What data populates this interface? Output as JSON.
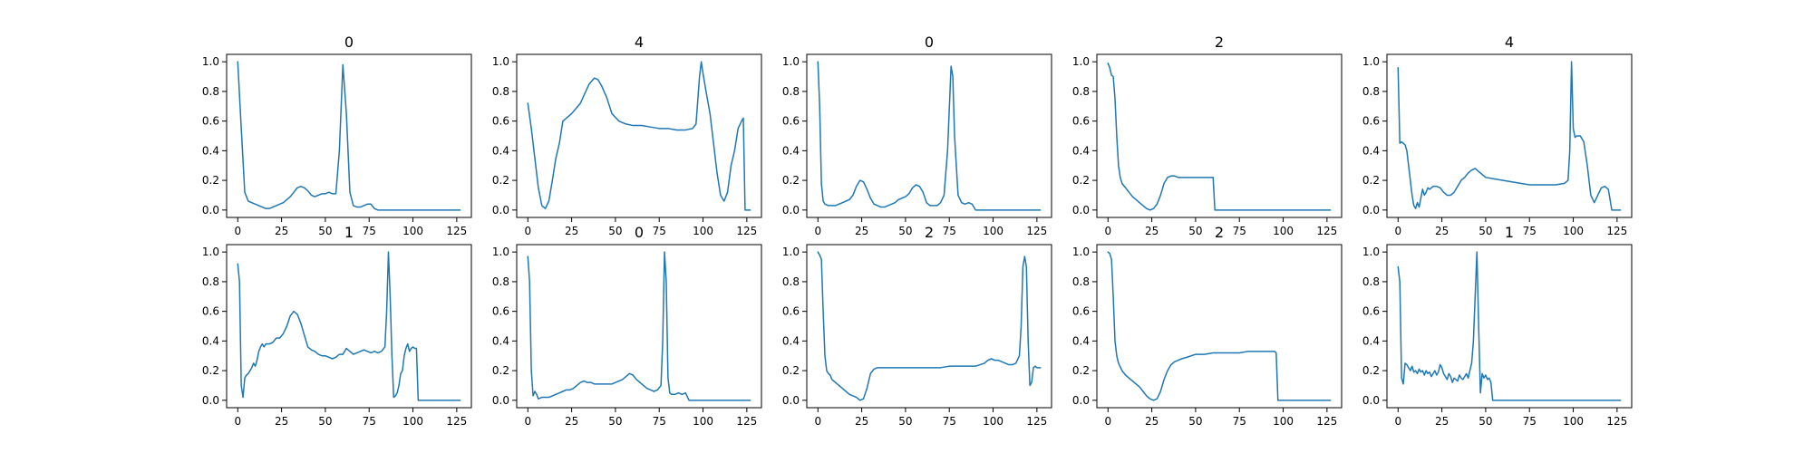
{
  "chart_data": [
    {
      "type": "line",
      "title": "0",
      "xlim": [
        -6.35,
        133.35
      ],
      "ylim": [
        -0.05,
        1.05
      ],
      "xticks": [
        "0",
        "25",
        "50",
        "75",
        "100",
        "125"
      ],
      "yticks": [
        "0.0",
        "0.2",
        "0.4",
        "0.6",
        "0.8",
        "1.0"
      ],
      "x": [
        0,
        2,
        4,
        6,
        8,
        10,
        12,
        14,
        16,
        18,
        20,
        22,
        24,
        26,
        28,
        30,
        32,
        34,
        36,
        38,
        40,
        42,
        44,
        46,
        48,
        50,
        52,
        54,
        56,
        58,
        60,
        62,
        64,
        66,
        68,
        70,
        72,
        74,
        76,
        78,
        80,
        85,
        90,
        127
      ],
      "y": [
        1.0,
        0.55,
        0.12,
        0.06,
        0.05,
        0.04,
        0.03,
        0.02,
        0.01,
        0.01,
        0.02,
        0.03,
        0.04,
        0.05,
        0.07,
        0.09,
        0.12,
        0.15,
        0.16,
        0.15,
        0.13,
        0.1,
        0.09,
        0.1,
        0.11,
        0.11,
        0.12,
        0.11,
        0.11,
        0.4,
        0.98,
        0.65,
        0.12,
        0.03,
        0.02,
        0.02,
        0.03,
        0.04,
        0.04,
        0.01,
        0.0,
        0.0,
        0.0,
        0.0
      ]
    },
    {
      "type": "line",
      "title": "4",
      "xlim": [
        -6.35,
        133.35
      ],
      "ylim": [
        -0.05,
        1.05
      ],
      "xticks": [
        "0",
        "25",
        "50",
        "75",
        "100",
        "125"
      ],
      "yticks": [
        "0.0",
        "0.2",
        "0.4",
        "0.6",
        "0.8",
        "1.0"
      ],
      "x": [
        0,
        2,
        4,
        6,
        8,
        10,
        12,
        14,
        16,
        18,
        20,
        25,
        30,
        35,
        38,
        40,
        42,
        45,
        48,
        52,
        56,
        60,
        65,
        70,
        75,
        80,
        85,
        90,
        94,
        96,
        98,
        99,
        100,
        102,
        104,
        106,
        108,
        110,
        112,
        114,
        116,
        118,
        120,
        122,
        123,
        124,
        125,
        127
      ],
      "y": [
        0.72,
        0.55,
        0.35,
        0.15,
        0.03,
        0.01,
        0.06,
        0.2,
        0.35,
        0.45,
        0.6,
        0.65,
        0.72,
        0.85,
        0.89,
        0.88,
        0.84,
        0.76,
        0.65,
        0.6,
        0.58,
        0.57,
        0.57,
        0.56,
        0.55,
        0.55,
        0.54,
        0.54,
        0.55,
        0.58,
        0.9,
        1.0,
        0.92,
        0.78,
        0.65,
        0.45,
        0.25,
        0.1,
        0.06,
        0.12,
        0.3,
        0.4,
        0.55,
        0.6,
        0.62,
        0.0,
        0.0,
        0.0
      ]
    },
    {
      "type": "line",
      "title": "0",
      "xlim": [
        -6.35,
        133.35
      ],
      "ylim": [
        -0.05,
        1.05
      ],
      "xticks": [
        "0",
        "25",
        "50",
        "75",
        "100",
        "125"
      ],
      "yticks": [
        "0.0",
        "0.2",
        "0.4",
        "0.6",
        "0.8",
        "1.0"
      ],
      "x": [
        0,
        1,
        2,
        3,
        4,
        6,
        8,
        10,
        12,
        14,
        16,
        18,
        20,
        22,
        24,
        26,
        28,
        30,
        32,
        34,
        36,
        38,
        40,
        42,
        44,
        46,
        48,
        50,
        52,
        54,
        56,
        58,
        60,
        62,
        64,
        66,
        68,
        70,
        72,
        74,
        76,
        77,
        78,
        80,
        82,
        84,
        86,
        88,
        90,
        127
      ],
      "y": [
        1.0,
        0.7,
        0.18,
        0.06,
        0.04,
        0.03,
        0.03,
        0.03,
        0.04,
        0.05,
        0.06,
        0.07,
        0.1,
        0.16,
        0.2,
        0.19,
        0.14,
        0.08,
        0.04,
        0.03,
        0.02,
        0.02,
        0.03,
        0.04,
        0.05,
        0.07,
        0.08,
        0.09,
        0.11,
        0.15,
        0.17,
        0.16,
        0.12,
        0.05,
        0.03,
        0.03,
        0.03,
        0.05,
        0.1,
        0.4,
        0.97,
        0.9,
        0.5,
        0.1,
        0.05,
        0.04,
        0.05,
        0.04,
        0.0,
        0.0
      ]
    },
    {
      "type": "line",
      "title": "2",
      "xlim": [
        -6.35,
        133.35
      ],
      "ylim": [
        -0.05,
        1.05
      ],
      "xticks": [
        "0",
        "25",
        "50",
        "75",
        "100",
        "125"
      ],
      "yticks": [
        "0.0",
        "0.2",
        "0.4",
        "0.6",
        "0.8",
        "1.0"
      ],
      "x": [
        0,
        1,
        2,
        3,
        4,
        5,
        6,
        7,
        8,
        10,
        12,
        14,
        16,
        18,
        20,
        22,
        24,
        26,
        28,
        30,
        32,
        34,
        36,
        38,
        40,
        42,
        45,
        50,
        55,
        58,
        60,
        61,
        127
      ],
      "y": [
        0.99,
        0.96,
        0.91,
        0.9,
        0.75,
        0.5,
        0.3,
        0.22,
        0.18,
        0.15,
        0.12,
        0.09,
        0.07,
        0.05,
        0.03,
        0.01,
        0.0,
        0.01,
        0.04,
        0.1,
        0.18,
        0.22,
        0.23,
        0.23,
        0.22,
        0.22,
        0.22,
        0.22,
        0.22,
        0.22,
        0.22,
        0.0,
        0.0
      ]
    },
    {
      "type": "line",
      "title": "4",
      "xlim": [
        -6.35,
        133.35
      ],
      "ylim": [
        -0.05,
        1.05
      ],
      "xticks": [
        "0",
        "25",
        "50",
        "75",
        "100",
        "125"
      ],
      "yticks": [
        "0.0",
        "0.2",
        "0.4",
        "0.6",
        "0.8",
        "1.0"
      ],
      "x": [
        0,
        1,
        2,
        3,
        4,
        5,
        6,
        7,
        8,
        9,
        10,
        11,
        12,
        13,
        14,
        15,
        16,
        17,
        18,
        20,
        22,
        24,
        26,
        28,
        30,
        32,
        34,
        36,
        38,
        40,
        42,
        44,
        46,
        48,
        50,
        55,
        60,
        65,
        70,
        75,
        80,
        85,
        90,
        95,
        97,
        98,
        99,
        100,
        101,
        102,
        104,
        106,
        108,
        110,
        112,
        114,
        116,
        118,
        120,
        122,
        127
      ],
      "y": [
        0.96,
        0.45,
        0.46,
        0.45,
        0.44,
        0.4,
        0.3,
        0.2,
        0.1,
        0.03,
        0.01,
        0.05,
        0.02,
        0.08,
        0.14,
        0.1,
        0.12,
        0.15,
        0.14,
        0.16,
        0.16,
        0.15,
        0.12,
        0.1,
        0.1,
        0.12,
        0.16,
        0.2,
        0.22,
        0.25,
        0.27,
        0.28,
        0.26,
        0.24,
        0.22,
        0.21,
        0.2,
        0.19,
        0.18,
        0.17,
        0.17,
        0.17,
        0.17,
        0.18,
        0.2,
        0.4,
        1.0,
        0.55,
        0.49,
        0.5,
        0.5,
        0.46,
        0.3,
        0.1,
        0.05,
        0.1,
        0.15,
        0.16,
        0.14,
        0.0,
        0.0
      ]
    },
    {
      "type": "line",
      "title": "1",
      "xlim": [
        -6.35,
        133.35
      ],
      "ylim": [
        -0.05,
        1.05
      ],
      "xticks": [
        "0",
        "25",
        "50",
        "75",
        "100",
        "125"
      ],
      "yticks": [
        "0.0",
        "0.2",
        "0.4",
        "0.6",
        "0.8",
        "1.0"
      ],
      "x": [
        0,
        1,
        2,
        3,
        4,
        5,
        6,
        7,
        8,
        9,
        10,
        11,
        12,
        13,
        14,
        15,
        16,
        18,
        20,
        22,
        24,
        26,
        28,
        30,
        32,
        34,
        36,
        38,
        40,
        42,
        44,
        46,
        48,
        50,
        52,
        54,
        56,
        58,
        60,
        62,
        64,
        66,
        68,
        70,
        72,
        74,
        76,
        78,
        80,
        82,
        84,
        85,
        86,
        87,
        88,
        89,
        90,
        91,
        92,
        93,
        94,
        95,
        96,
        97,
        98,
        99,
        100,
        101,
        102,
        103,
        104,
        105,
        106,
        127
      ],
      "y": [
        0.92,
        0.8,
        0.1,
        0.02,
        0.15,
        0.17,
        0.18,
        0.2,
        0.22,
        0.25,
        0.23,
        0.27,
        0.33,
        0.36,
        0.38,
        0.36,
        0.38,
        0.38,
        0.39,
        0.42,
        0.42,
        0.45,
        0.5,
        0.57,
        0.6,
        0.58,
        0.52,
        0.44,
        0.36,
        0.34,
        0.33,
        0.31,
        0.3,
        0.3,
        0.29,
        0.28,
        0.29,
        0.31,
        0.31,
        0.35,
        0.33,
        0.31,
        0.32,
        0.33,
        0.34,
        0.33,
        0.32,
        0.33,
        0.32,
        0.33,
        0.36,
        0.6,
        1.0,
        0.7,
        0.3,
        0.02,
        0.03,
        0.05,
        0.1,
        0.18,
        0.2,
        0.3,
        0.35,
        0.38,
        0.33,
        0.35,
        0.36,
        0.35,
        0.35,
        0.0,
        0.0,
        0.0,
        0.0,
        0.0
      ]
    },
    {
      "type": "line",
      "title": "0",
      "xlim": [
        -6.35,
        133.35
      ],
      "ylim": [
        -0.05,
        1.05
      ],
      "xticks": [
        "0",
        "25",
        "50",
        "75",
        "100",
        "125"
      ],
      "yticks": [
        "0.0",
        "0.2",
        "0.4",
        "0.6",
        "0.8",
        "1.0"
      ],
      "x": [
        0,
        1,
        2,
        3,
        4,
        5,
        6,
        8,
        10,
        12,
        14,
        16,
        18,
        20,
        22,
        24,
        26,
        28,
        30,
        32,
        34,
        36,
        38,
        40,
        42,
        44,
        46,
        48,
        50,
        52,
        54,
        56,
        58,
        60,
        62,
        64,
        66,
        68,
        70,
        72,
        74,
        76,
        77,
        78,
        79,
        80,
        81,
        82,
        84,
        86,
        88,
        90,
        92,
        94,
        96,
        127
      ],
      "y": [
        0.97,
        0.8,
        0.2,
        0.03,
        0.06,
        0.04,
        0.01,
        0.02,
        0.02,
        0.02,
        0.03,
        0.04,
        0.05,
        0.06,
        0.07,
        0.07,
        0.08,
        0.1,
        0.12,
        0.13,
        0.12,
        0.12,
        0.11,
        0.11,
        0.11,
        0.11,
        0.11,
        0.11,
        0.12,
        0.13,
        0.14,
        0.16,
        0.18,
        0.17,
        0.14,
        0.12,
        0.1,
        0.08,
        0.07,
        0.06,
        0.07,
        0.1,
        0.4,
        1.0,
        0.8,
        0.15,
        0.05,
        0.04,
        0.04,
        0.05,
        0.04,
        0.05,
        0.0,
        0.0,
        0.0,
        0.0
      ]
    },
    {
      "type": "line",
      "title": "2",
      "xlim": [
        -6.35,
        133.35
      ],
      "ylim": [
        -0.05,
        1.05
      ],
      "xticks": [
        "0",
        "25",
        "50",
        "75",
        "100",
        "125"
      ],
      "yticks": [
        "0.0",
        "0.2",
        "0.4",
        "0.6",
        "0.8",
        "1.0"
      ],
      "x": [
        0,
        1,
        2,
        3,
        4,
        5,
        6,
        7,
        8,
        10,
        12,
        14,
        16,
        18,
        20,
        22,
        24,
        26,
        28,
        30,
        32,
        34,
        36,
        38,
        40,
        45,
        50,
        55,
        60,
        65,
        70,
        75,
        80,
        85,
        90,
        95,
        97,
        99,
        101,
        103,
        105,
        107,
        109,
        111,
        113,
        115,
        116,
        117,
        118,
        119,
        120,
        121,
        122,
        123,
        124,
        125,
        127
      ],
      "y": [
        1.0,
        0.98,
        0.95,
        0.6,
        0.3,
        0.2,
        0.18,
        0.17,
        0.14,
        0.12,
        0.1,
        0.08,
        0.06,
        0.04,
        0.03,
        0.02,
        0.0,
        0.01,
        0.08,
        0.18,
        0.21,
        0.22,
        0.22,
        0.22,
        0.22,
        0.22,
        0.22,
        0.22,
        0.22,
        0.22,
        0.22,
        0.23,
        0.23,
        0.23,
        0.23,
        0.25,
        0.27,
        0.28,
        0.27,
        0.27,
        0.26,
        0.25,
        0.24,
        0.24,
        0.25,
        0.3,
        0.5,
        0.9,
        0.97,
        0.9,
        0.4,
        0.1,
        0.12,
        0.22,
        0.23,
        0.22,
        0.22
      ]
    },
    {
      "type": "line",
      "title": "2",
      "xlim": [
        -6.35,
        133.35
      ],
      "ylim": [
        -0.05,
        1.05
      ],
      "xticks": [
        "0",
        "25",
        "50",
        "75",
        "100",
        "125"
      ],
      "yticks": [
        "0.0",
        "0.2",
        "0.4",
        "0.6",
        "0.8",
        "1.0"
      ],
      "x": [
        0,
        1,
        2,
        3,
        4,
        5,
        6,
        8,
        10,
        12,
        14,
        16,
        18,
        20,
        22,
        24,
        26,
        28,
        30,
        32,
        34,
        36,
        38,
        40,
        42,
        45,
        50,
        55,
        60,
        65,
        70,
        75,
        80,
        85,
        90,
        95,
        96,
        97,
        127
      ],
      "y": [
        1.0,
        0.99,
        0.95,
        0.7,
        0.4,
        0.3,
        0.25,
        0.2,
        0.17,
        0.15,
        0.13,
        0.11,
        0.09,
        0.06,
        0.03,
        0.01,
        0.0,
        0.01,
        0.06,
        0.14,
        0.2,
        0.24,
        0.26,
        0.27,
        0.28,
        0.29,
        0.31,
        0.31,
        0.32,
        0.32,
        0.32,
        0.32,
        0.33,
        0.33,
        0.33,
        0.33,
        0.32,
        0.0,
        0.0
      ]
    },
    {
      "type": "line",
      "title": "1",
      "xlim": [
        -6.35,
        133.35
      ],
      "ylim": [
        -0.05,
        1.05
      ],
      "xticks": [
        "0",
        "25",
        "50",
        "75",
        "100",
        "125"
      ],
      "yticks": [
        "0.0",
        "0.2",
        "0.4",
        "0.6",
        "0.8",
        "1.0"
      ],
      "x": [
        0,
        1,
        2,
        3,
        4,
        5,
        6,
        7,
        8,
        9,
        10,
        11,
        12,
        13,
        14,
        15,
        16,
        17,
        18,
        19,
        20,
        21,
        22,
        23,
        24,
        25,
        26,
        27,
        28,
        29,
        30,
        31,
        32,
        33,
        34,
        35,
        36,
        37,
        38,
        39,
        40,
        41,
        42,
        43,
        44,
        45,
        46,
        47,
        48,
        49,
        50,
        51,
        52,
        53,
        54,
        55,
        56,
        57,
        58,
        127
      ],
      "y": [
        0.9,
        0.8,
        0.15,
        0.11,
        0.25,
        0.24,
        0.22,
        0.2,
        0.23,
        0.19,
        0.2,
        0.18,
        0.21,
        0.19,
        0.2,
        0.17,
        0.2,
        0.18,
        0.19,
        0.16,
        0.18,
        0.2,
        0.17,
        0.19,
        0.24,
        0.22,
        0.18,
        0.16,
        0.14,
        0.18,
        0.16,
        0.12,
        0.15,
        0.14,
        0.13,
        0.17,
        0.15,
        0.14,
        0.16,
        0.18,
        0.15,
        0.2,
        0.25,
        0.4,
        0.7,
        1.0,
        0.5,
        0.05,
        0.18,
        0.15,
        0.17,
        0.14,
        0.15,
        0.12,
        0.0,
        0.0,
        0.0,
        0.0,
        0.0,
        0.0
      ]
    }
  ]
}
